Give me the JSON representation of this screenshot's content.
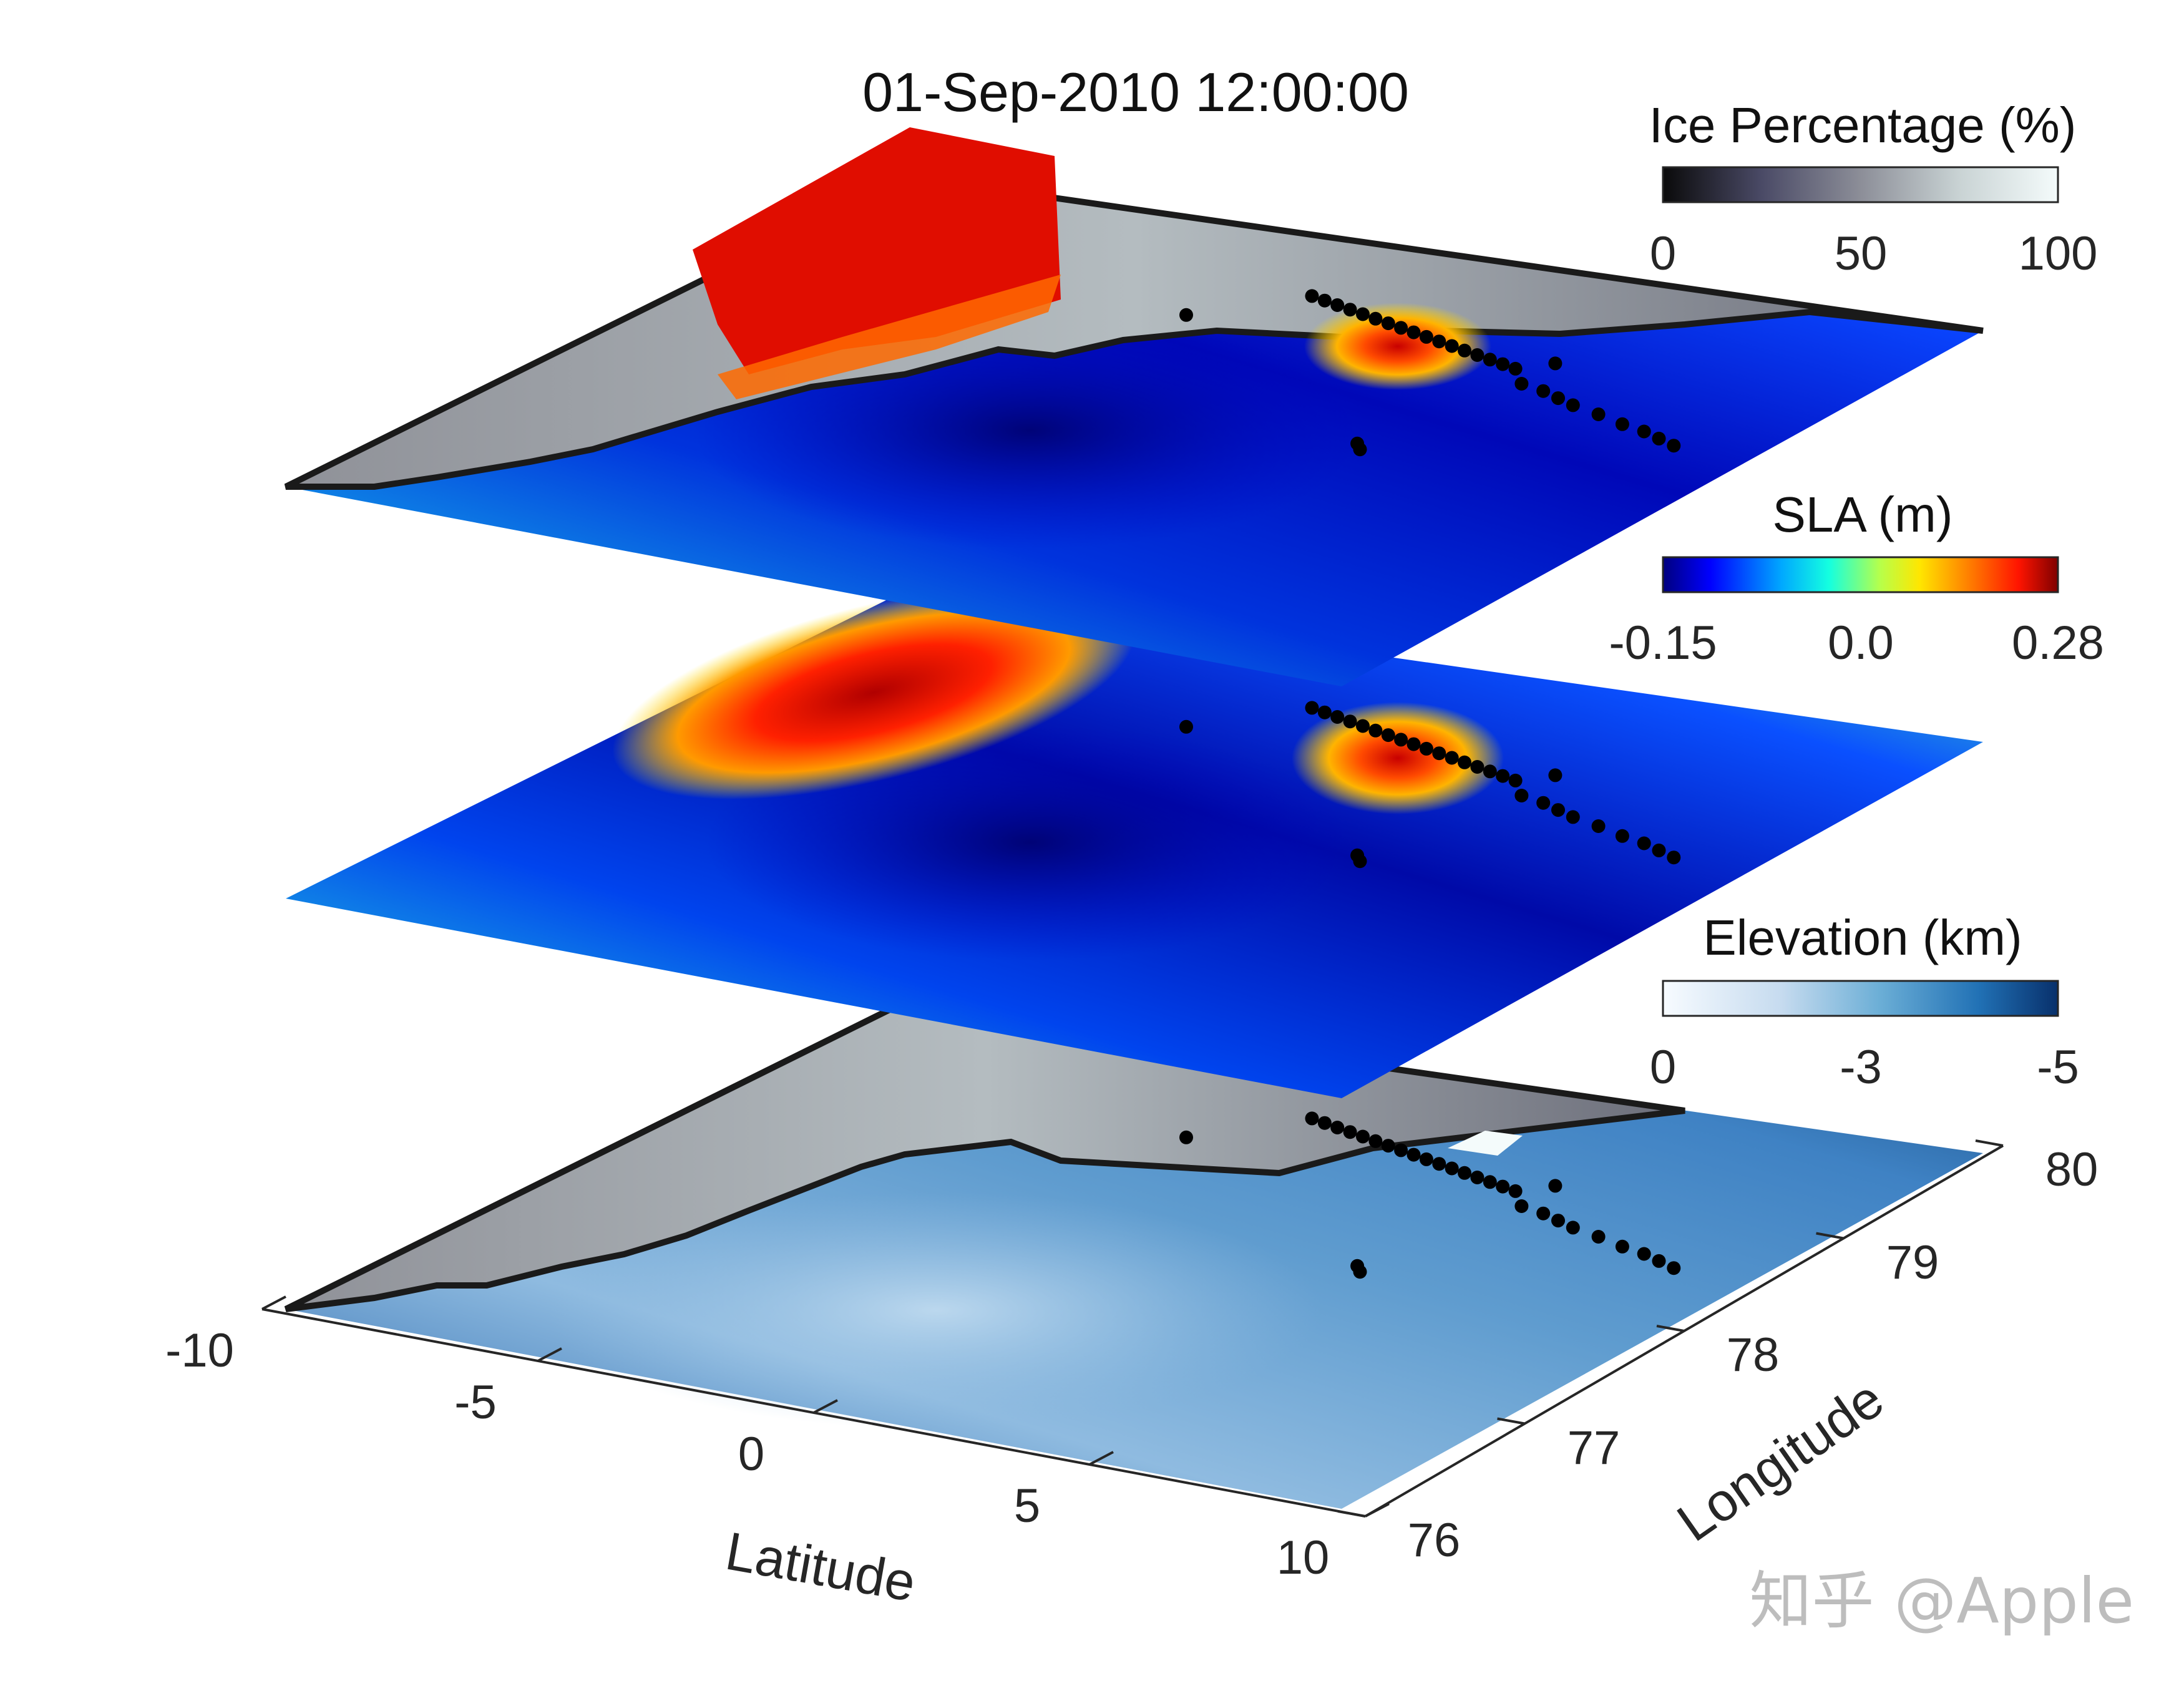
{
  "title": "01-Sep-2010 12:00:00",
  "colorbars": {
    "ice": {
      "label": "Ice Percentage (%)",
      "ticks": [
        "0",
        "50",
        "100"
      ],
      "colors": [
        "#0a0a0a",
        "#4a4a66",
        "#8c8e98",
        "#c9d3d4",
        "#f4fbfb"
      ]
    },
    "sla": {
      "label": "SLA (m)",
      "ticks": [
        "-0.15",
        "0.0",
        "0.28"
      ],
      "colors": [
        "#00007f",
        "#0000ff",
        "#00a8ff",
        "#14ffe0",
        "#b7ff4a",
        "#ffe600",
        "#ff7a00",
        "#ff1400",
        "#7f0000"
      ]
    },
    "elev": {
      "label": "Elevation (km)",
      "ticks": [
        "0",
        "-3",
        "-5"
      ],
      "colors": [
        "#f7fbff",
        "#c6dbef",
        "#6baed6",
        "#2171b5",
        "#08306b"
      ]
    }
  },
  "axes": {
    "latitude": {
      "label": "Latitude",
      "ticks": [
        "-10",
        "-5",
        "0",
        "5",
        "10"
      ]
    },
    "longitude": {
      "label": "Longitude",
      "ticks": [
        "76",
        "77",
        "78",
        "79",
        "80"
      ]
    }
  },
  "chart_data": {
    "type": "heatmap",
    "title": "01-Sep-2010 12:00:00",
    "layers": [
      "Ice Percentage (%)",
      "SLA (m)",
      "Elevation (km)"
    ],
    "xlabel": "Latitude",
    "ylabel": "Longitude",
    "xlim": [
      -10,
      10
    ],
    "ylim": [
      76,
      80
    ],
    "x_ticks": [
      -10,
      -5,
      0,
      5,
      10
    ],
    "y_ticks": [
      76,
      77,
      78,
      79,
      80
    ],
    "ice_range": [
      0,
      100
    ],
    "sla_range": [
      -0.15,
      0.28
    ],
    "elevation_range": [
      0,
      -5
    ],
    "stations": [
      {
        "x": -2.4,
        "y": 79.2
      },
      {
        "x": -1.2,
        "y": 79.6
      },
      {
        "x": -0.9,
        "y": 79.58
      },
      {
        "x": -0.6,
        "y": 79.56
      },
      {
        "x": -0.3,
        "y": 79.54
      },
      {
        "x": 0.0,
        "y": 79.52
      },
      {
        "x": 0.3,
        "y": 79.5
      },
      {
        "x": 0.6,
        "y": 79.48
      },
      {
        "x": 0.9,
        "y": 79.46
      },
      {
        "x": 1.2,
        "y": 79.44
      },
      {
        "x": 1.5,
        "y": 79.42
      },
      {
        "x": 1.8,
        "y": 79.4
      },
      {
        "x": 2.1,
        "y": 79.38
      },
      {
        "x": 2.4,
        "y": 79.36
      },
      {
        "x": 2.7,
        "y": 79.34
      },
      {
        "x": 3.0,
        "y": 79.32
      },
      {
        "x": 3.3,
        "y": 79.3
      },
      {
        "x": 3.6,
        "y": 79.28
      },
      {
        "x": 4.0,
        "y": 79.4
      },
      {
        "x": 4.1,
        "y": 79.15
      },
      {
        "x": 4.6,
        "y": 79.12
      },
      {
        "x": 5.0,
        "y": 79.08
      },
      {
        "x": 5.4,
        "y": 79.04
      },
      {
        "x": 6.0,
        "y": 79.0
      },
      {
        "x": 6.6,
        "y": 78.95
      },
      {
        "x": 7.1,
        "y": 78.92
      },
      {
        "x": 7.5,
        "y": 78.88
      },
      {
        "x": 7.9,
        "y": 78.84
      },
      {
        "x": 3.5,
        "y": 78.3
      },
      {
        "x": 3.7,
        "y": 78.25
      }
    ]
  }
}
